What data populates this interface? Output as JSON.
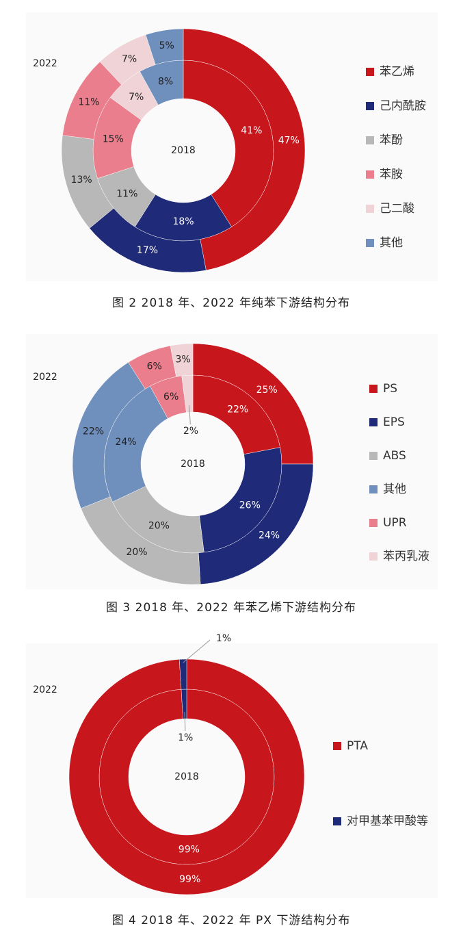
{
  "chart_data": [
    {
      "type": "donut",
      "caption": "图 2  2018 年、2022 年纯苯下游结构分布",
      "categories": [
        "苯乙烯",
        "己内酰胺",
        "苯酚",
        "苯胺",
        "己二酸",
        "其他"
      ],
      "colors": [
        "#c8161d",
        "#1f2a78",
        "#b8b8b8",
        "#ea7e8c",
        "#f0d3d6",
        "#6f8fbd"
      ],
      "series": [
        {
          "name": "2018",
          "values": [
            41,
            18,
            11,
            15,
            7,
            8
          ],
          "value_labels": [
            "41%",
            "18%",
            "11%",
            "15%",
            "7%",
            "8%"
          ]
        },
        {
          "name": "2022",
          "values": [
            47,
            17,
            13,
            11,
            7,
            5
          ],
          "value_labels": [
            "47%",
            "17%",
            "13%",
            "11%",
            "7%",
            "5%"
          ]
        }
      ]
    },
    {
      "type": "donut",
      "caption": "图 3  2018 年、2022 年苯乙烯下游结构分布",
      "categories": [
        "PS",
        "EPS",
        "ABS",
        "其他",
        "UPR",
        "苯丙乳液"
      ],
      "colors": [
        "#c8161d",
        "#1f2a78",
        "#b8b8b8",
        "#6f8fbd",
        "#ea7e8c",
        "#f0d3d6"
      ],
      "series": [
        {
          "name": "2018",
          "values": [
            22,
            26,
            20,
            24,
            6,
            2
          ],
          "value_labels": [
            "22%",
            "26%",
            "20%",
            "24%",
            "6%",
            "2%"
          ]
        },
        {
          "name": "2022",
          "values": [
            25,
            24,
            20,
            22,
            6,
            3
          ],
          "value_labels": [
            "25%",
            "24%",
            "20%",
            "22%",
            "6%",
            "3%"
          ]
        }
      ]
    },
    {
      "type": "donut",
      "caption": "图 4  2018 年、2022 年 PX 下游结构分布",
      "categories": [
        "PTA",
        "对甲基苯甲酸等"
      ],
      "colors": [
        "#c8161d",
        "#1f2a78"
      ],
      "series": [
        {
          "name": "2018",
          "values": [
            99,
            1
          ],
          "value_labels": [
            "99%",
            "1%"
          ]
        },
        {
          "name": "2022",
          "values": [
            99,
            1
          ],
          "value_labels": [
            "99%",
            "1%"
          ]
        }
      ]
    }
  ]
}
